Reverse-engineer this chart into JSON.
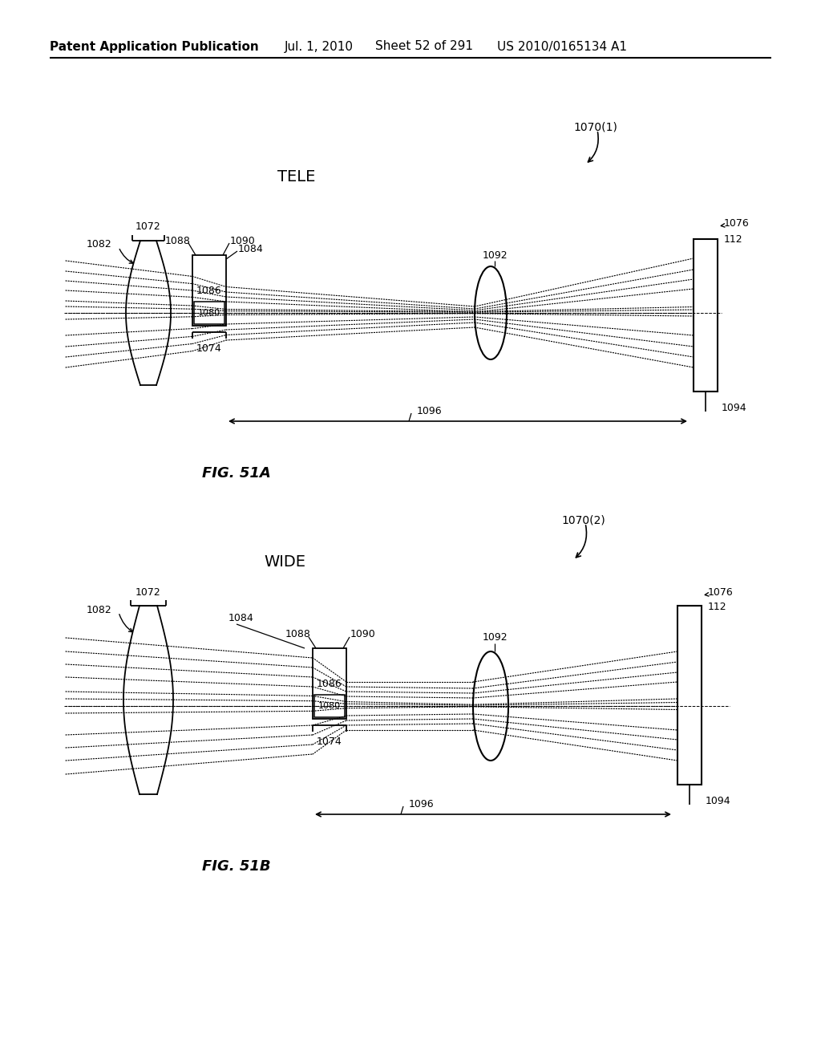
{
  "bg_color": "#ffffff",
  "line_color": "#000000",
  "header_text": "Patent Application Publication",
  "header_date": "Jul. 1, 2010",
  "header_sheet": "Sheet 52 of 291",
  "header_patent": "US 2010/0165134 A1",
  "fig_a_label": "FIG. 51A",
  "fig_b_label": "FIG. 51B",
  "tele_label": "TELE",
  "wide_label": "WIDE",
  "label_1070_1": "1070(1)",
  "label_1070_2": "1070(2)",
  "label_1072": "1072",
  "label_1082": "1082",
  "label_1084": "1084",
  "label_1086": "1086",
  "label_1088": "1088",
  "label_1090": "1090",
  "label_1074": "1074",
  "label_1080": "1080",
  "label_1092": "1092",
  "label_1076": "1076",
  "label_112": "112",
  "label_1094": "1094",
  "label_1096": "1096"
}
